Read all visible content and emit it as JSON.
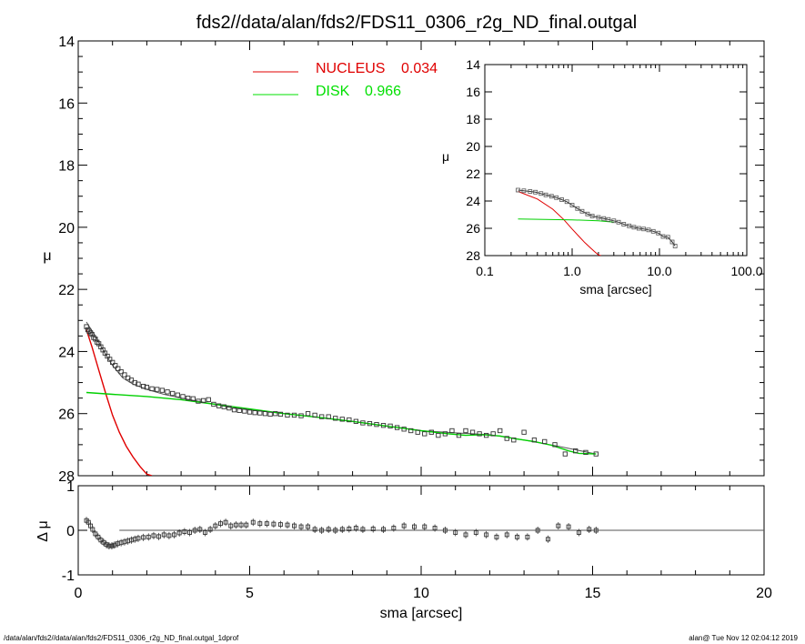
{
  "page": {
    "footer_left": "/data/alan/fds2//data/alan/fds2/FDS11_0306_r2g_ND_final.outgal_1dprof",
    "footer_right": "alan@  Tue Nov 12 02:04:12 2019"
  },
  "chart_data": [
    {
      "id": "main",
      "type": "scatter",
      "title": "fds2//data/alan/fds2/FDS11_0306_r2g_ND_final.outgal",
      "xlabel": "sma [arcsec]",
      "ylabel": "μ",
      "xlim": [
        0,
        20
      ],
      "ylim": [
        28,
        14
      ],
      "x_ticks": [
        0,
        5,
        10,
        15,
        20
      ],
      "y_ticks": [
        14,
        16,
        18,
        20,
        22,
        24,
        26,
        28
      ],
      "legend": [
        {
          "name": "NUCLEUS",
          "value": "0.034",
          "color": "#e00000"
        },
        {
          "name": "DISK",
          "value": "0.966",
          "color": "#00e000"
        }
      ],
      "observed": {
        "x": [
          0.24,
          0.28,
          0.32,
          0.36,
          0.4,
          0.45,
          0.5,
          0.55,
          0.6,
          0.66,
          0.72,
          0.78,
          0.85,
          0.92,
          1.0,
          1.08,
          1.16,
          1.25,
          1.35,
          1.45,
          1.55,
          1.65,
          1.75,
          1.9,
          2.0,
          2.15,
          2.3,
          2.45,
          2.6,
          2.75,
          2.9,
          3.05,
          3.2,
          3.35,
          3.5,
          3.65,
          3.8,
          3.95,
          4.1,
          4.25,
          4.4,
          4.55,
          4.7,
          4.85,
          5.0,
          5.15,
          5.3,
          5.45,
          5.6,
          5.75,
          5.9,
          6.1,
          6.3,
          6.5,
          6.7,
          6.9,
          7.1,
          7.3,
          7.5,
          7.7,
          7.9,
          8.1,
          8.3,
          8.5,
          8.7,
          8.9,
          9.1,
          9.3,
          9.5,
          9.7,
          9.9,
          10.1,
          10.3,
          10.5,
          10.7,
          10.9,
          11.1,
          11.3,
          11.5,
          11.7,
          11.9,
          12.1,
          12.3,
          12.5,
          12.7,
          13.0,
          13.3,
          13.6,
          13.9,
          14.2,
          14.5,
          14.8,
          15.1
        ],
        "y": [
          23.2,
          23.3,
          23.35,
          23.4,
          23.45,
          23.55,
          23.6,
          23.7,
          23.75,
          23.85,
          23.95,
          24.05,
          24.15,
          24.25,
          24.35,
          24.45,
          24.55,
          24.65,
          24.75,
          24.85,
          24.92,
          25.0,
          25.05,
          25.12,
          25.15,
          25.2,
          25.22,
          25.25,
          25.3,
          25.35,
          25.4,
          25.45,
          25.5,
          25.52,
          25.6,
          25.58,
          25.55,
          25.7,
          25.75,
          25.78,
          25.82,
          25.88,
          25.9,
          25.92,
          25.95,
          25.97,
          25.98,
          26.0,
          26.02,
          26.0,
          26.02,
          26.05,
          26.05,
          26.07,
          26.0,
          26.05,
          26.1,
          26.1,
          26.15,
          26.18,
          26.2,
          26.25,
          26.3,
          26.32,
          26.35,
          26.38,
          26.4,
          26.45,
          26.5,
          26.55,
          26.6,
          26.65,
          26.6,
          26.7,
          26.65,
          26.55,
          26.7,
          26.55,
          26.6,
          26.65,
          26.7,
          26.65,
          26.55,
          26.8,
          26.85,
          26.6,
          26.85,
          26.9,
          27.0,
          27.3,
          27.2,
          27.25,
          27.3
        ]
      },
      "nucleus_model": {
        "x": [
          0.24,
          0.4,
          0.6,
          0.8,
          1.0,
          1.2,
          1.4,
          1.6,
          1.8,
          2.0,
          2.15
        ],
        "y": [
          23.3,
          23.85,
          24.6,
          25.35,
          26.05,
          26.6,
          27.05,
          27.4,
          27.7,
          27.95,
          28.0
        ]
      },
      "disk_model": {
        "x": [
          0.24,
          1.0,
          2.0,
          3.0,
          4.0,
          5.0,
          6.0,
          7.0,
          8.0,
          9.0,
          10.0,
          10.8,
          11.3,
          11.8,
          12.3,
          12.8,
          13.3,
          13.8,
          14.3,
          14.6,
          15.1
        ],
        "y": [
          25.32,
          25.38,
          25.45,
          25.55,
          25.7,
          25.85,
          26.0,
          26.12,
          26.25,
          26.4,
          26.55,
          26.65,
          26.7,
          26.68,
          26.72,
          26.82,
          26.9,
          27.02,
          27.2,
          27.28,
          27.3
        ]
      },
      "total_model": {
        "x": [
          0.24,
          0.5,
          0.8,
          1.0,
          1.3,
          1.6,
          2.0,
          2.5,
          3.0,
          3.5,
          4.0,
          4.5,
          5.0,
          6.0,
          7.0,
          8.0,
          9.0,
          10.0,
          11.0,
          12.0,
          13.0,
          14.0,
          15.1
        ],
        "y": [
          23.05,
          23.5,
          24.1,
          24.45,
          24.85,
          25.05,
          25.22,
          25.38,
          25.5,
          25.6,
          25.7,
          25.82,
          25.88,
          26.0,
          26.12,
          26.25,
          26.4,
          26.55,
          26.62,
          26.68,
          26.85,
          27.05,
          27.3
        ]
      }
    },
    {
      "id": "residual",
      "type": "scatter",
      "xlabel": "sma [arcsec]",
      "ylabel": "Δ μ",
      "xlim": [
        0,
        20
      ],
      "ylim": [
        -1,
        1
      ],
      "x_ticks": [
        0,
        5,
        10,
        15,
        20
      ],
      "y_ticks": [
        -1,
        0,
        1
      ],
      "zero_line_x": [
        1.2,
        20
      ],
      "x": [
        0.24,
        0.3,
        0.36,
        0.42,
        0.5,
        0.58,
        0.66,
        0.74,
        0.82,
        0.9,
        0.98,
        1.06,
        1.15,
        1.25,
        1.35,
        1.45,
        1.55,
        1.65,
        1.75,
        1.9,
        2.05,
        2.2,
        2.35,
        2.5,
        2.65,
        2.8,
        2.95,
        3.1,
        3.25,
        3.4,
        3.55,
        3.7,
        3.85,
        4.0,
        4.15,
        4.3,
        4.45,
        4.6,
        4.75,
        4.9,
        5.1,
        5.3,
        5.5,
        5.7,
        5.9,
        6.1,
        6.3,
        6.5,
        6.7,
        6.9,
        7.1,
        7.3,
        7.5,
        7.7,
        7.9,
        8.1,
        8.3,
        8.6,
        8.9,
        9.2,
        9.5,
        9.8,
        10.1,
        10.4,
        10.7,
        11.0,
        11.3,
        11.6,
        11.9,
        12.2,
        12.5,
        12.8,
        13.1,
        13.4,
        13.7,
        14.0,
        14.3,
        14.6,
        14.9,
        15.1
      ],
      "y": [
        0.22,
        0.18,
        0.1,
        0.02,
        -0.08,
        -0.15,
        -0.22,
        -0.27,
        -0.32,
        -0.35,
        -0.35,
        -0.33,
        -0.3,
        -0.28,
        -0.26,
        -0.24,
        -0.22,
        -0.2,
        -0.18,
        -0.16,
        -0.15,
        -0.12,
        -0.14,
        -0.1,
        -0.12,
        -0.1,
        -0.06,
        -0.03,
        -0.05,
        0.0,
        0.02,
        -0.05,
        0.02,
        0.1,
        0.15,
        0.18,
        0.1,
        0.12,
        0.12,
        0.12,
        0.18,
        0.15,
        0.15,
        0.14,
        0.13,
        0.12,
        0.1,
        0.08,
        0.08,
        0.02,
        0.0,
        0.02,
        0.0,
        0.02,
        0.03,
        0.05,
        0.02,
        0.03,
        0.02,
        0.05,
        0.1,
        0.08,
        0.08,
        0.05,
        0.0,
        -0.05,
        -0.1,
        -0.05,
        -0.1,
        -0.15,
        -0.1,
        -0.15,
        -0.15,
        0.0,
        -0.2,
        0.1,
        0.08,
        -0.05,
        0.02,
        0.0
      ]
    },
    {
      "id": "inset",
      "type": "scatter",
      "xlabel": "sma [arcsec]",
      "ylabel": "μ",
      "x_scale": "log",
      "xlim": [
        0.1,
        100.0
      ],
      "ylim": [
        28,
        14
      ],
      "x_tick_labels": [
        "0.1",
        "1.0",
        "10.0",
        "100.0"
      ],
      "y_ticks": [
        14,
        16,
        18,
        20,
        22,
        24,
        26,
        28
      ],
      "observed": {
        "x": [
          0.24,
          0.28,
          0.33,
          0.38,
          0.44,
          0.5,
          0.58,
          0.66,
          0.76,
          0.87,
          1.0,
          1.15,
          1.3,
          1.5,
          1.7,
          2.0,
          2.3,
          2.6,
          3.0,
          3.4,
          3.9,
          4.5,
          5.1,
          5.8,
          6.6,
          7.5,
          8.5,
          9.7,
          11.0,
          12.5,
          14.0,
          15.1
        ],
        "y": [
          23.2,
          23.25,
          23.3,
          23.35,
          23.45,
          23.55,
          23.65,
          23.75,
          23.9,
          24.05,
          24.3,
          24.55,
          24.75,
          24.95,
          25.1,
          25.2,
          25.28,
          25.35,
          25.45,
          25.55,
          25.7,
          25.82,
          25.92,
          26.0,
          26.05,
          26.12,
          26.22,
          26.35,
          26.6,
          26.65,
          27.0,
          27.3
        ]
      },
      "nucleus_model": {
        "x": [
          0.24,
          0.4,
          0.6,
          0.8,
          1.0,
          1.2,
          1.4,
          1.6,
          1.8,
          2.0,
          2.15
        ],
        "y": [
          23.3,
          23.85,
          24.6,
          25.35,
          26.05,
          26.6,
          27.05,
          27.4,
          27.7,
          27.95,
          28.0
        ]
      },
      "disk_model": {
        "x": [
          0.24,
          1.0,
          2.0,
          3.0
        ],
        "y": [
          25.32,
          25.38,
          25.45,
          25.55
        ]
      }
    }
  ]
}
